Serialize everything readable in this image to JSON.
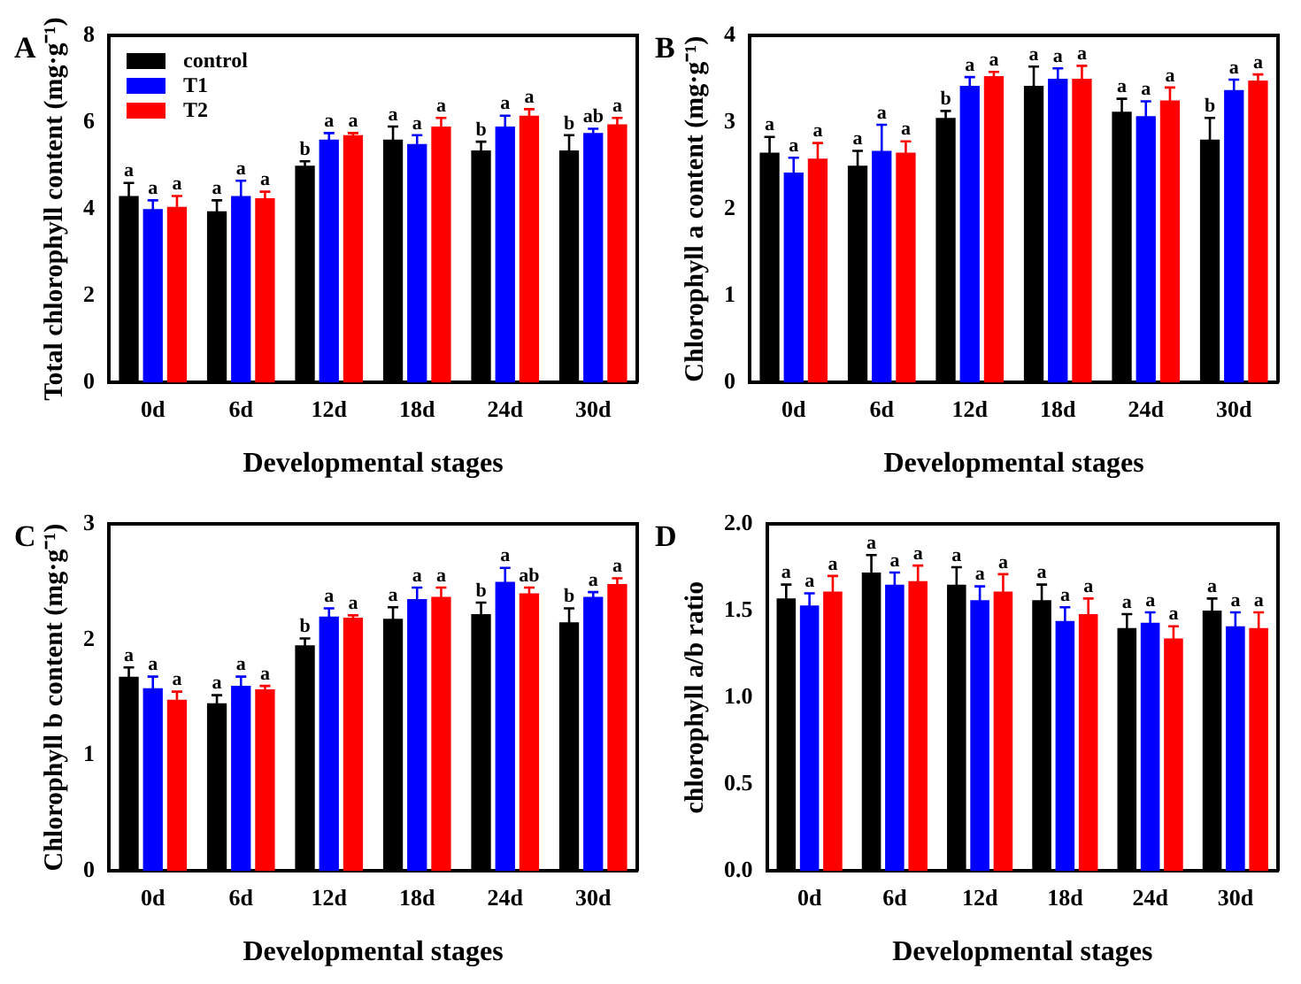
{
  "chart_data": [
    {
      "type": "bar",
      "title": "A",
      "xlabel": "Developmental stages",
      "ylabel": "Total chlorophyll content (mg·g⁻¹)",
      "categories": [
        "0d",
        "6d",
        "12d",
        "18d",
        "24d",
        "30d"
      ],
      "ylim": [
        0,
        8
      ],
      "yticks": [
        0,
        2,
        4,
        6,
        8
      ],
      "grid": false,
      "legend": "top left",
      "series": [
        {
          "name": "control",
          "color": "#000000",
          "values": [
            4.3,
            3.95,
            5.0,
            5.6,
            5.35,
            5.35
          ],
          "errors": [
            0.3,
            0.25,
            0.1,
            0.3,
            0.2,
            0.35
          ],
          "value_labels": [
            "a",
            "a",
            "b",
            "a",
            "b",
            "b"
          ]
        },
        {
          "name": "T1",
          "color": "#0000ff",
          "values": [
            4.0,
            4.3,
            5.6,
            5.5,
            5.9,
            5.75
          ],
          "errors": [
            0.2,
            0.35,
            0.15,
            0.2,
            0.25,
            0.1
          ],
          "value_labels": [
            "a",
            "a",
            "a",
            "a",
            "a",
            "ab"
          ]
        },
        {
          "name": "T2",
          "color": "#ff0000",
          "values": [
            4.05,
            4.25,
            5.7,
            5.9,
            6.15,
            5.95
          ],
          "errors": [
            0.25,
            0.15,
            0.05,
            0.2,
            0.15,
            0.15
          ],
          "value_labels": [
            "a",
            "a",
            "a",
            "a",
            "a",
            "a"
          ]
        }
      ]
    },
    {
      "type": "bar",
      "title": "B",
      "xlabel": "Developmental stages",
      "ylabel": "Chlorophyll a content (mg·g⁻¹)",
      "categories": [
        "0d",
        "6d",
        "12d",
        "18d",
        "24d",
        "30d"
      ],
      "ylim": [
        0,
        4
      ],
      "yticks": [
        0,
        1,
        2,
        3,
        4
      ],
      "grid": false,
      "series": [
        {
          "color": "#000000",
          "values": [
            2.65,
            2.5,
            3.05,
            3.42,
            3.12,
            2.8
          ],
          "errors": [
            0.18,
            0.17,
            0.08,
            0.22,
            0.15,
            0.25
          ],
          "value_labels": [
            "a",
            "a",
            "b",
            "a",
            "a",
            "b"
          ]
        },
        {
          "color": "#0000ff",
          "values": [
            2.42,
            2.67,
            3.42,
            3.5,
            3.07,
            3.37
          ],
          "errors": [
            0.17,
            0.3,
            0.1,
            0.12,
            0.17,
            0.12
          ],
          "value_labels": [
            "a",
            "a",
            "a",
            "a",
            "a",
            "a"
          ]
        },
        {
          "color": "#ff0000",
          "values": [
            2.58,
            2.65,
            3.53,
            3.5,
            3.25,
            3.48
          ],
          "errors": [
            0.18,
            0.13,
            0.05,
            0.15,
            0.15,
            0.07
          ],
          "value_labels": [
            "a",
            "a",
            "a",
            "a",
            "a",
            "a"
          ]
        }
      ]
    },
    {
      "type": "bar",
      "title": "C",
      "xlabel": "Developmental stages",
      "ylabel": "Chlorophyll b content (mg·g⁻¹)",
      "categories": [
        "0d",
        "6d",
        "12d",
        "18d",
        "24d",
        "30d"
      ],
      "ylim": [
        0,
        3
      ],
      "yticks": [
        0,
        1,
        2,
        3
      ],
      "grid": false,
      "series": [
        {
          "color": "#000000",
          "values": [
            1.68,
            1.45,
            1.95,
            2.18,
            2.22,
            2.15
          ],
          "errors": [
            0.08,
            0.07,
            0.06,
            0.1,
            0.1,
            0.12
          ],
          "value_labels": [
            "a",
            "a",
            "b",
            "a",
            "b",
            "b"
          ]
        },
        {
          "color": "#0000ff",
          "values": [
            1.58,
            1.6,
            2.2,
            2.35,
            2.5,
            2.37
          ],
          "errors": [
            0.1,
            0.08,
            0.07,
            0.1,
            0.12,
            0.04
          ],
          "value_labels": [
            "a",
            "a",
            "a",
            "a",
            "a",
            "a"
          ]
        },
        {
          "color": "#ff0000",
          "values": [
            1.48,
            1.57,
            2.19,
            2.37,
            2.4,
            2.48
          ],
          "errors": [
            0.07,
            0.03,
            0.02,
            0.08,
            0.05,
            0.05
          ],
          "value_labels": [
            "a",
            "a",
            "a",
            "a",
            "ab",
            "a"
          ]
        }
      ]
    },
    {
      "type": "bar",
      "title": "D",
      "xlabel": "Developmental stages",
      "ylabel": "chlorophyll a/b ratio",
      "categories": [
        "0d",
        "6d",
        "12d",
        "18d",
        "24d",
        "30d"
      ],
      "ylim": [
        0,
        2
      ],
      "yticks": [
        {
          "value": 0,
          "label": "0.0"
        },
        {
          "value": 0.5,
          "label": "0.5"
        },
        {
          "value": 1,
          "label": "1.0"
        },
        {
          "value": 1.5,
          "label": "1.5"
        },
        {
          "value": 2,
          "label": "2.0"
        }
      ],
      "grid": false,
      "series": [
        {
          "color": "#000000",
          "values": [
            1.57,
            1.72,
            1.65,
            1.56,
            1.4,
            1.5
          ],
          "errors": [
            0.08,
            0.1,
            0.1,
            0.09,
            0.08,
            0.07
          ],
          "value_labels": [
            "a",
            "a",
            "a",
            "a",
            "a",
            "a"
          ]
        },
        {
          "color": "#0000ff",
          "values": [
            1.53,
            1.65,
            1.56,
            1.44,
            1.43,
            1.41
          ],
          "errors": [
            0.07,
            0.07,
            0.08,
            0.08,
            0.06,
            0.08
          ],
          "value_labels": [
            "a",
            "a",
            "a",
            "a",
            "a",
            "a"
          ]
        },
        {
          "color": "#ff0000",
          "values": [
            1.61,
            1.67,
            1.61,
            1.48,
            1.34,
            1.4
          ],
          "errors": [
            0.09,
            0.09,
            0.1,
            0.09,
            0.07,
            0.09
          ],
          "value_labels": [
            "a",
            "a",
            "a",
            "a",
            "a",
            "a"
          ]
        }
      ]
    }
  ]
}
